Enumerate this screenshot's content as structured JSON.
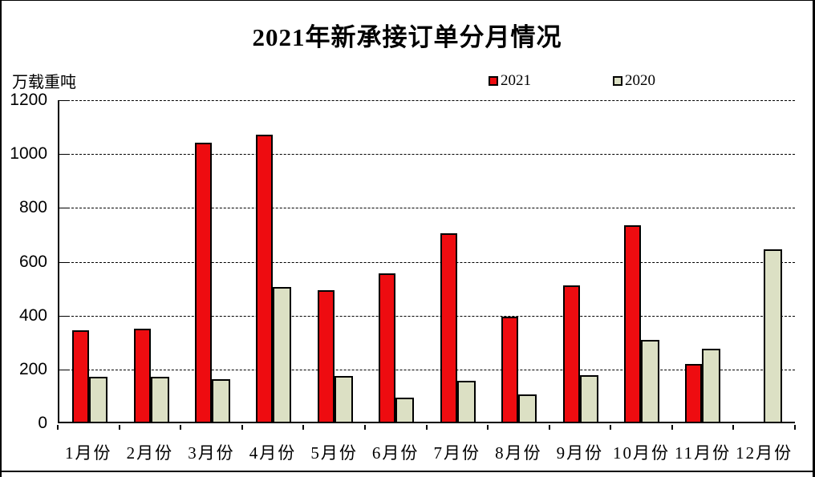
{
  "page": {
    "background": "#ffffff",
    "frame_border_color": "#000000"
  },
  "chart": {
    "title": "2021年新承接订单分月情况",
    "unit_label": "万载重吨",
    "legend": [
      {
        "label": "2021",
        "color": "#ee0c10"
      },
      {
        "label": "2020",
        "color": "#dce0c4"
      }
    ]
  },
  "chart_data": {
    "type": "bar",
    "title": "2021年新承接订单分月情况",
    "ylabel": "万载重吨",
    "categories": [
      "1月份",
      "2月份",
      "3月份",
      "4月份",
      "5月份",
      "6月份",
      "7月份",
      "8月份",
      "9月份",
      "10月份",
      "11月份",
      "12月份"
    ],
    "series": [
      {
        "name": "2021",
        "color": "#ee0c10",
        "values": [
          340,
          344,
          1035,
          1065,
          487,
          550,
          700,
          390,
          505,
          730,
          213,
          0
        ]
      },
      {
        "name": "2020",
        "color": "#dce0c4",
        "values": [
          167,
          167,
          157,
          500,
          170,
          90,
          152,
          100,
          173,
          303,
          270,
          640
        ]
      }
    ],
    "ylim": [
      0,
      1200
    ],
    "yticks": [
      0,
      200,
      400,
      600,
      800,
      1000,
      1200
    ],
    "grid": "horizontal-dashed",
    "legend_position": "top-center",
    "bar_outline": "#000000"
  }
}
